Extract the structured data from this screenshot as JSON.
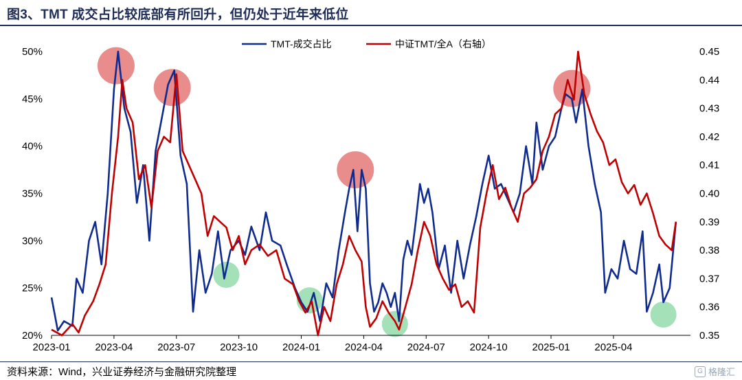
{
  "title": "图3、TMT 成交占比较底部有所回升，但仍处于近年来低位",
  "source": "资料来源：Wind，兴业证券经济与金融研究院整理",
  "watermark": "格隆汇",
  "colors": {
    "series_blue": "#0f2b8f",
    "series_red": "#c00000",
    "highlight_red": "#e06666",
    "highlight_green": "#7ed39a",
    "title_color": "#1f2d56"
  },
  "chart_data": {
    "type": "line",
    "title": "",
    "xlabel": "",
    "ylabel": "",
    "x_ticks": [
      "2023-01",
      "2023-04",
      "2023-07",
      "2023-10",
      "2024-01",
      "2024-04",
      "2024-07",
      "2024-10",
      "2025-01",
      "2025-04"
    ],
    "x_tick_times": [
      0,
      3,
      6,
      9,
      12,
      15,
      18,
      21,
      24,
      27
    ],
    "x_range": [
      0,
      30.7
    ],
    "y_left": {
      "ticks": [
        "20%",
        "25%",
        "30%",
        "35%",
        "40%",
        "45%",
        "50%"
      ],
      "range": [
        0.2,
        0.5
      ]
    },
    "y_right": {
      "ticks": [
        "0.35",
        "0.36",
        "0.37",
        "0.38",
        "0.39",
        "0.40",
        "0.41",
        "0.42",
        "0.43",
        "0.44",
        "0.45"
      ],
      "range": [
        0.35,
        0.45
      ]
    },
    "legend_position": "top-center",
    "grid": false,
    "series": [
      {
        "name": "TMT-成交占比",
        "axis": "left",
        "color": "#0f2b8f",
        "points": [
          [
            0.0,
            0.24
          ],
          [
            0.3,
            0.205
          ],
          [
            0.6,
            0.215
          ],
          [
            1.0,
            0.21
          ],
          [
            1.2,
            0.26
          ],
          [
            1.5,
            0.245
          ],
          [
            1.8,
            0.3
          ],
          [
            2.1,
            0.32
          ],
          [
            2.4,
            0.275
          ],
          [
            2.7,
            0.35
          ],
          [
            3.0,
            0.46
          ],
          [
            3.2,
            0.5
          ],
          [
            3.5,
            0.44
          ],
          [
            3.8,
            0.415
          ],
          [
            4.1,
            0.34
          ],
          [
            4.4,
            0.38
          ],
          [
            4.7,
            0.3
          ],
          [
            5.0,
            0.395
          ],
          [
            5.3,
            0.43
          ],
          [
            5.6,
            0.465
          ],
          [
            5.9,
            0.48
          ],
          [
            6.2,
            0.39
          ],
          [
            6.5,
            0.36
          ],
          [
            6.8,
            0.225
          ],
          [
            7.1,
            0.29
          ],
          [
            7.4,
            0.245
          ],
          [
            7.7,
            0.265
          ],
          [
            8.0,
            0.31
          ],
          [
            8.3,
            0.26
          ],
          [
            8.6,
            0.29
          ],
          [
            9.0,
            0.3
          ],
          [
            9.3,
            0.285
          ],
          [
            9.6,
            0.315
          ],
          [
            10.0,
            0.29
          ],
          [
            10.3,
            0.33
          ],
          [
            10.6,
            0.3
          ],
          [
            11.0,
            0.295
          ],
          [
            11.3,
            0.275
          ],
          [
            11.7,
            0.25
          ],
          [
            12.0,
            0.235
          ],
          [
            12.3,
            0.225
          ],
          [
            12.6,
            0.245
          ],
          [
            12.9,
            0.215
          ],
          [
            13.2,
            0.255
          ],
          [
            13.5,
            0.24
          ],
          [
            13.8,
            0.29
          ],
          [
            14.1,
            0.33
          ],
          [
            14.3,
            0.355
          ],
          [
            14.5,
            0.375
          ],
          [
            14.7,
            0.31
          ],
          [
            14.9,
            0.375
          ],
          [
            15.1,
            0.355
          ],
          [
            15.3,
            0.255
          ],
          [
            15.5,
            0.225
          ],
          [
            15.7,
            0.235
          ],
          [
            15.9,
            0.255
          ],
          [
            16.1,
            0.245
          ],
          [
            16.3,
            0.23
          ],
          [
            16.5,
            0.245
          ],
          [
            16.7,
            0.215
          ],
          [
            16.9,
            0.28
          ],
          [
            17.1,
            0.3
          ],
          [
            17.3,
            0.285
          ],
          [
            17.5,
            0.32
          ],
          [
            17.7,
            0.36
          ],
          [
            17.9,
            0.34
          ],
          [
            18.1,
            0.355
          ],
          [
            18.3,
            0.33
          ],
          [
            18.6,
            0.27
          ],
          [
            18.9,
            0.295
          ],
          [
            19.2,
            0.245
          ],
          [
            19.5,
            0.3
          ],
          [
            19.8,
            0.26
          ],
          [
            20.1,
            0.295
          ],
          [
            20.4,
            0.325
          ],
          [
            20.7,
            0.36
          ],
          [
            21.0,
            0.39
          ],
          [
            21.3,
            0.355
          ],
          [
            21.6,
            0.36
          ],
          [
            21.9,
            0.345
          ],
          [
            22.2,
            0.33
          ],
          [
            22.5,
            0.35
          ],
          [
            22.8,
            0.4
          ],
          [
            23.1,
            0.36
          ],
          [
            23.3,
            0.425
          ],
          [
            23.6,
            0.375
          ],
          [
            23.9,
            0.4
          ],
          [
            24.2,
            0.41
          ],
          [
            24.5,
            0.44
          ],
          [
            24.7,
            0.455
          ],
          [
            25.0,
            0.45
          ],
          [
            25.2,
            0.425
          ],
          [
            25.5,
            0.46
          ],
          [
            25.8,
            0.4
          ],
          [
            26.1,
            0.36
          ],
          [
            26.4,
            0.33
          ],
          [
            26.6,
            0.245
          ],
          [
            26.9,
            0.27
          ],
          [
            27.2,
            0.26
          ],
          [
            27.5,
            0.3
          ],
          [
            27.8,
            0.27
          ],
          [
            28.1,
            0.265
          ],
          [
            28.4,
            0.31
          ],
          [
            28.6,
            0.225
          ],
          [
            28.9,
            0.245
          ],
          [
            29.2,
            0.275
          ],
          [
            29.4,
            0.235
          ],
          [
            29.7,
            0.25
          ],
          [
            30.0,
            0.32
          ]
        ]
      },
      {
        "name": "中证TMT/全A（右轴）",
        "axis": "right",
        "color": "#c00000",
        "points": [
          [
            0.0,
            0.352
          ],
          [
            0.5,
            0.35
          ],
          [
            1.0,
            0.354
          ],
          [
            1.3,
            0.351
          ],
          [
            1.6,
            0.357
          ],
          [
            2.0,
            0.362
          ],
          [
            2.3,
            0.368
          ],
          [
            2.6,
            0.375
          ],
          [
            2.9,
            0.4
          ],
          [
            3.2,
            0.42
          ],
          [
            3.4,
            0.44
          ],
          [
            3.6,
            0.43
          ],
          [
            3.9,
            0.425
          ],
          [
            4.2,
            0.405
          ],
          [
            4.5,
            0.41
          ],
          [
            4.8,
            0.395
          ],
          [
            5.1,
            0.415
          ],
          [
            5.4,
            0.42
          ],
          [
            5.7,
            0.418
          ],
          [
            6.0,
            0.442
          ],
          [
            6.3,
            0.415
          ],
          [
            6.6,
            0.41
          ],
          [
            6.9,
            0.405
          ],
          [
            7.2,
            0.4
          ],
          [
            7.5,
            0.385
          ],
          [
            7.8,
            0.392
          ],
          [
            8.1,
            0.39
          ],
          [
            8.4,
            0.388
          ],
          [
            8.7,
            0.38
          ],
          [
            9.0,
            0.385
          ],
          [
            9.3,
            0.375
          ],
          [
            9.6,
            0.38
          ],
          [
            10.0,
            0.382
          ],
          [
            10.4,
            0.378
          ],
          [
            10.8,
            0.38
          ],
          [
            11.2,
            0.37
          ],
          [
            11.6,
            0.368
          ],
          [
            11.9,
            0.362
          ],
          [
            12.2,
            0.358
          ],
          [
            12.5,
            0.362
          ],
          [
            12.8,
            0.35
          ],
          [
            13.1,
            0.36
          ],
          [
            13.4,
            0.355
          ],
          [
            13.7,
            0.368
          ],
          [
            14.0,
            0.375
          ],
          [
            14.3,
            0.385
          ],
          [
            14.6,
            0.38
          ],
          [
            14.9,
            0.376
          ],
          [
            15.1,
            0.36
          ],
          [
            15.3,
            0.353
          ],
          [
            15.6,
            0.356
          ],
          [
            15.9,
            0.362
          ],
          [
            16.2,
            0.358
          ],
          [
            16.5,
            0.355
          ],
          [
            16.7,
            0.352
          ],
          [
            17.0,
            0.36
          ],
          [
            17.3,
            0.368
          ],
          [
            17.6,
            0.38
          ],
          [
            17.9,
            0.39
          ],
          [
            18.2,
            0.385
          ],
          [
            18.5,
            0.375
          ],
          [
            18.8,
            0.37
          ],
          [
            19.1,
            0.366
          ],
          [
            19.4,
            0.368
          ],
          [
            19.7,
            0.36
          ],
          [
            20.0,
            0.362
          ],
          [
            20.3,
            0.358
          ],
          [
            20.6,
            0.388
          ],
          [
            20.9,
            0.4
          ],
          [
            21.2,
            0.41
          ],
          [
            21.5,
            0.398
          ],
          [
            21.8,
            0.402
          ],
          [
            22.1,
            0.395
          ],
          [
            22.4,
            0.39
          ],
          [
            22.7,
            0.4
          ],
          [
            23.0,
            0.402
          ],
          [
            23.3,
            0.405
          ],
          [
            23.6,
            0.415
          ],
          [
            23.9,
            0.42
          ],
          [
            24.2,
            0.428
          ],
          [
            24.5,
            0.43
          ],
          [
            24.8,
            0.44
          ],
          [
            25.1,
            0.433
          ],
          [
            25.3,
            0.45
          ],
          [
            25.6,
            0.435
          ],
          [
            25.9,
            0.428
          ],
          [
            26.2,
            0.422
          ],
          [
            26.5,
            0.418
          ],
          [
            26.8,
            0.41
          ],
          [
            27.1,
            0.412
          ],
          [
            27.4,
            0.404
          ],
          [
            27.7,
            0.4
          ],
          [
            28.0,
            0.403
          ],
          [
            28.3,
            0.396
          ],
          [
            28.6,
            0.4
          ],
          [
            28.9,
            0.393
          ],
          [
            29.2,
            0.385
          ],
          [
            29.5,
            0.382
          ],
          [
            29.8,
            0.38
          ],
          [
            30.0,
            0.39
          ]
        ]
      }
    ],
    "highlights": [
      {
        "color": "red",
        "x": 3.1,
        "y_left": 0.485,
        "label": ""
      },
      {
        "color": "red",
        "x": 5.8,
        "y_left": 0.462,
        "label": ""
      },
      {
        "color": "red",
        "x": 14.6,
        "y_left": 0.375,
        "label": ""
      },
      {
        "color": "red",
        "x": 25.0,
        "y_left": 0.461,
        "label": ""
      },
      {
        "color": "green",
        "x": 8.4,
        "y_left": 0.264,
        "label": ""
      },
      {
        "color": "green",
        "x": 12.4,
        "y_left": 0.237,
        "label": ""
      },
      {
        "color": "green",
        "x": 16.5,
        "y_left": 0.212,
        "label": ""
      },
      {
        "color": "green",
        "x": 29.4,
        "y_left": 0.222,
        "label": ""
      }
    ]
  }
}
